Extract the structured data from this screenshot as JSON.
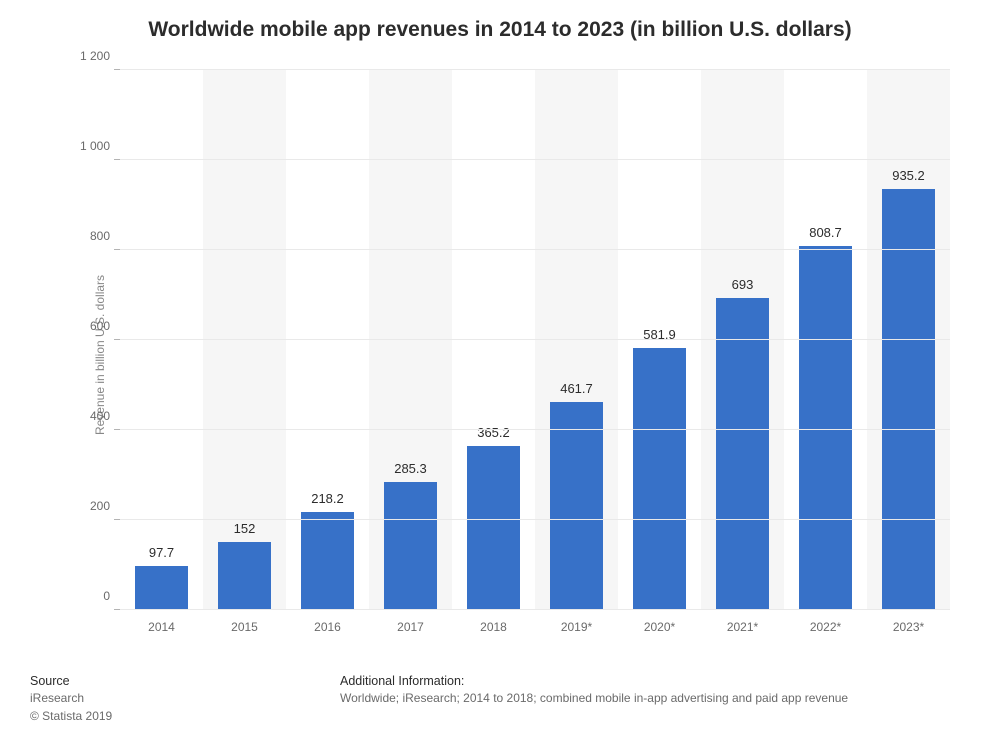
{
  "chart": {
    "type": "bar",
    "title": "Worldwide mobile app revenues in 2014 to 2023 (in billion U.S. dollars)",
    "title_fontsize": 21,
    "y_axis_title": "Revenue in billion U.S. dollars",
    "label_fontsize": 12,
    "categories": [
      "2014",
      "2015",
      "2016",
      "2017",
      "2018",
      "2019*",
      "2020*",
      "2021*",
      "2022*",
      "2023*"
    ],
    "values": [
      97.7,
      152,
      218.2,
      285.3,
      365.2,
      461.7,
      581.9,
      693,
      808.7,
      935.2
    ],
    "value_labels": [
      "97.7",
      "152",
      "218.2",
      "285.3",
      "365.2",
      "461.7",
      "581.9",
      "693",
      "808.7",
      "935.2"
    ],
    "bar_color": "#3771c8",
    "bar_width": 0.64,
    "ylim": [
      0,
      1200
    ],
    "ytick_step": 200,
    "ytick_labels": [
      "0",
      "200",
      "400",
      "600",
      "800",
      "1 000",
      "1 200"
    ],
    "background_color": "#ffffff",
    "alt_band_color": "#f6f6f6",
    "grid_color": "#e9e9e9",
    "axis_color": "#b3b3b3",
    "text_color": "#2c2c2c",
    "muted_text_color": "#6a6a6a",
    "title_color": "#2c2c2c"
  },
  "footer": {
    "source_heading": "Source",
    "source_value": "iResearch",
    "copyright": "© Statista 2019",
    "addl_heading": "Additional Information:",
    "addl_value": "Worldwide; iResearch; 2014 to 2018; combined mobile in-app advertising and paid app revenue"
  }
}
